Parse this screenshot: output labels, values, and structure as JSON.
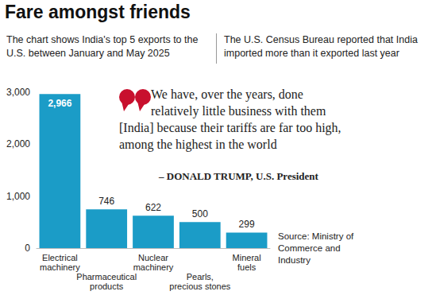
{
  "chart_data": {
    "type": "bar",
    "title": "Fare amongst friends",
    "subtitle": [
      "The chart shows India's top 5 exports to the U.S. between January and May 2025",
      "The U.S. Census Bureau reported that India imported more than it exported last year"
    ],
    "annotations": [
      "We have, over the years, done relatively little business with them [India] because their tariffs are far too high, among the highest in the world",
      "– DONALD TRUMP, U.S. President"
    ],
    "source": "Source: Ministry of Commerce and Industry",
    "categories": [
      "Electrical machinery",
      "Pharmaceutical products",
      "Nuclear machinery",
      "Pearls, precious stones",
      "Mineral fuels"
    ],
    "values": [
      2966,
      746,
      622,
      500,
      299
    ],
    "value_labels": [
      "2,966",
      "746",
      "622",
      "500",
      "299"
    ],
    "data_labels": true,
    "color": "#1b9cc7",
    "ylim": [
      0,
      3000
    ],
    "yticks": [
      0,
      {
        "value": 1000,
        "label": "1,000"
      },
      {
        "value": 2000,
        "label": "2,000"
      },
      {
        "value": 3000,
        "label": "3,000"
      }
    ],
    "grid": false
  }
}
